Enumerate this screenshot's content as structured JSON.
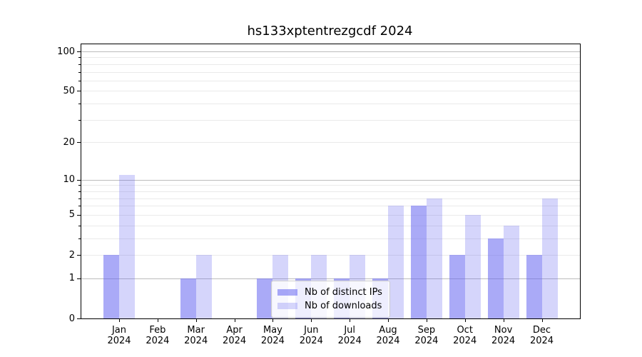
{
  "chart_data": {
    "type": "bar",
    "title": "hs133xptentrezgcdf 2024",
    "categories": [
      {
        "month": "Jan",
        "year": "2024"
      },
      {
        "month": "Feb",
        "year": "2024"
      },
      {
        "month": "Mar",
        "year": "2024"
      },
      {
        "month": "Apr",
        "year": "2024"
      },
      {
        "month": "May",
        "year": "2024"
      },
      {
        "month": "Jun",
        "year": "2024"
      },
      {
        "month": "Jul",
        "year": "2024"
      },
      {
        "month": "Aug",
        "year": "2024"
      },
      {
        "month": "Sep",
        "year": "2024"
      },
      {
        "month": "Oct",
        "year": "2024"
      },
      {
        "month": "Nov",
        "year": "2024"
      },
      {
        "month": "Dec",
        "year": "2024"
      }
    ],
    "series": [
      {
        "name": "Nb of distinct IPs",
        "color": "rgba(100,100,240,0.55)",
        "values": [
          2,
          0,
          1,
          0,
          1,
          1,
          1,
          1,
          6,
          2,
          3,
          2
        ]
      },
      {
        "name": "Nb of downloads",
        "color": "rgba(100,100,240,0.27)",
        "values": [
          11,
          0,
          2,
          0,
          2,
          2,
          2,
          6,
          7,
          5,
          4,
          7
        ]
      }
    ],
    "yscale": "log1p",
    "ylim": [
      0,
      100
    ],
    "yticks": [
      0,
      1,
      2,
      5,
      10,
      20,
      50,
      100
    ],
    "y_major_gridlines": [
      1,
      10,
      100
    ],
    "y_minor_gridlines": [
      2,
      3,
      4,
      5,
      6,
      7,
      8,
      9,
      20,
      30,
      40,
      50,
      60,
      70,
      80,
      90
    ],
    "grid": "on",
    "legend_position": "lower-center-inside"
  },
  "colors": {
    "bar_distinct_ips": "rgba(100,100,240,0.55)",
    "bar_downloads": "rgba(100,100,240,0.27)",
    "grid_major": "#bcbcbc",
    "grid_minor": "#eaeaea",
    "axis": "#000000",
    "legend_border": "#cccccc",
    "legend_background": "rgba(255,255,255,0.8)",
    "text": "#000000"
  }
}
